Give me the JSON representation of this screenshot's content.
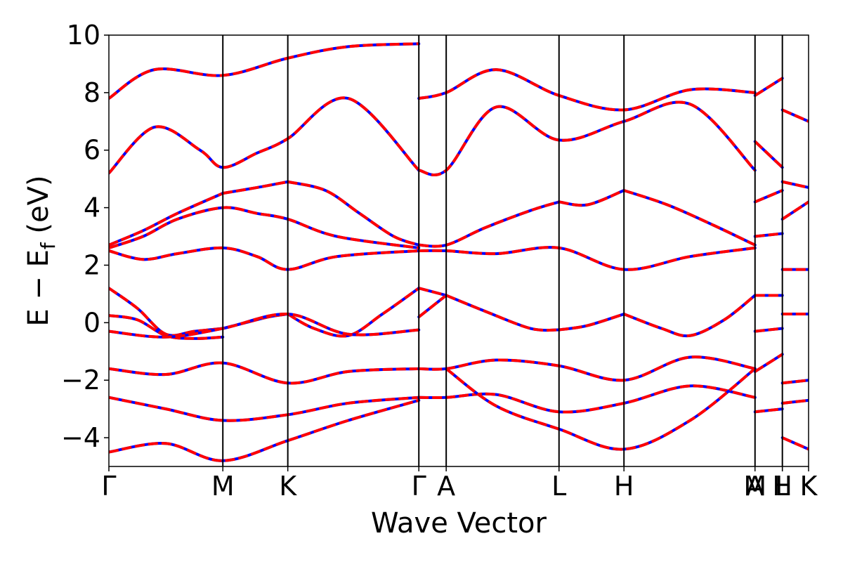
{
  "chart_data": {
    "type": "line",
    "title": "",
    "xlabel": "Wave Vector",
    "ylabel": {
      "main": "E − E",
      "subscript": "f",
      "unit": " (eV)"
    },
    "ylim": [
      -5,
      10
    ],
    "yticks": [
      -4,
      -2,
      0,
      2,
      4,
      6,
      8,
      10
    ],
    "ytick_labels": [
      "−4",
      "−2",
      "0",
      "2",
      "4",
      "6",
      "8",
      "10"
    ],
    "xlim": [
      0,
      6.14
    ],
    "high_symmetry_points": [
      {
        "label": "Γ",
        "x": 0.0
      },
      {
        "label": "M",
        "x": 1.0
      },
      {
        "label": "K",
        "x": 1.57
      },
      {
        "label": "Γ",
        "x": 2.72
      },
      {
        "label": "A",
        "x": 2.96
      },
      {
        "label": "L",
        "x": 3.95
      },
      {
        "label": "H",
        "x": 4.52
      },
      {
        "label": "A",
        "x": 5.67
      },
      {
        "label": "M",
        "x": 5.67
      },
      {
        "label": "L",
        "x": 5.91
      },
      {
        "label": "H",
        "x": 5.91
      },
      {
        "label": "K",
        "x": 6.14
      }
    ],
    "grid": false,
    "colors": {
      "series_a": "#0000ff",
      "series_b": "#ff0000"
    },
    "series": [
      {
        "style": "solid blue, overlaid by dashed red",
        "x": [
          0,
          0.25,
          0.5,
          0.75,
          1.0
        ],
        "y": [
          1.2,
          0.5,
          -0.4,
          -0.3,
          -0.2
        ]
      },
      {
        "style": "solid blue, overlaid by dashed red",
        "x": [
          1.0,
          1.2,
          1.4,
          1.57
        ],
        "y": [
          -0.2,
          0.0,
          0.2,
          0.3
        ]
      },
      {
        "style": "solid blue, overlaid by dashed red",
        "x": [
          1.57,
          1.8,
          2.1,
          2.4,
          2.72
        ],
        "y": [
          0.3,
          -0.2,
          -0.45,
          0.3,
          1.2
        ]
      },
      {
        "style": "solid blue, overlaid by dashed red",
        "x": [
          0,
          0.25,
          0.5,
          0.75,
          1.0
        ],
        "y": [
          0.25,
          0.1,
          -0.45,
          -0.55,
          -0.5
        ]
      },
      {
        "style": "solid blue, overlaid by dashed red",
        "x": [
          0,
          0.5,
          1.0,
          1.57,
          2.1,
          2.72
        ],
        "y": [
          -0.3,
          -0.5,
          -0.2,
          0.3,
          -0.4,
          -0.25
        ]
      },
      {
        "style": "solid blue, overlaid by dashed red",
        "x": [
          2.72,
          2.96
        ],
        "y": [
          1.2,
          0.95
        ]
      },
      {
        "style": "solid blue, overlaid by dashed red",
        "x": [
          2.72,
          2.96
        ],
        "y": [
          0.2,
          0.95
        ]
      },
      {
        "style": "solid blue, overlaid by dashed red",
        "x": [
          2.96,
          3.3,
          3.7,
          3.95
        ],
        "y": [
          0.95,
          0.4,
          -0.2,
          -0.25
        ]
      },
      {
        "style": "solid blue, overlaid by dashed red",
        "x": [
          3.95,
          4.2,
          4.52
        ],
        "y": [
          -0.25,
          -0.1,
          0.3
        ]
      },
      {
        "style": "solid blue, overlaid by dashed red",
        "x": [
          4.52,
          4.85,
          5.1,
          5.4,
          5.67
        ],
        "y": [
          0.3,
          -0.2,
          -0.45,
          0.1,
          0.95
        ]
      },
      {
        "style": "solid blue, overlaid by dashed red",
        "x": [
          0,
          0.3,
          0.6,
          1.0
        ],
        "y": [
          2.7,
          3.2,
          3.8,
          4.5
        ]
      },
      {
        "style": "solid blue, overlaid by dashed red",
        "x": [
          1.0,
          1.3,
          1.57
        ],
        "y": [
          4.5,
          4.7,
          4.9
        ]
      },
      {
        "style": "solid blue, overlaid by dashed red",
        "x": [
          1.57,
          1.9,
          2.2,
          2.5,
          2.72
        ],
        "y": [
          4.9,
          4.6,
          3.8,
          3.0,
          2.7
        ]
      },
      {
        "style": "solid blue, overlaid by dashed red",
        "x": [
          0,
          0.3,
          0.6,
          1.0,
          1.3,
          1.57,
          2.0,
          2.72
        ],
        "y": [
          2.6,
          3.0,
          3.6,
          4.0,
          3.8,
          3.6,
          3.0,
          2.6
        ]
      },
      {
        "style": "solid blue, overlaid by dashed red",
        "x": [
          0,
          0.3,
          0.6,
          1.0,
          1.3,
          1.57,
          2.0,
          2.72
        ],
        "y": [
          2.5,
          2.2,
          2.4,
          2.6,
          2.3,
          1.85,
          2.3,
          2.5
        ]
      },
      {
        "style": "solid blue, overlaid by dashed red",
        "x": [
          2.72,
          2.96,
          3.3,
          3.7,
          3.95
        ],
        "y": [
          2.7,
          2.7,
          3.3,
          3.9,
          4.2
        ]
      },
      {
        "style": "solid blue, overlaid by dashed red",
        "x": [
          3.95,
          4.2,
          4.52
        ],
        "y": [
          4.2,
          4.1,
          4.6
        ]
      },
      {
        "style": "solid blue, overlaid by dashed red",
        "x": [
          4.52,
          4.9,
          5.3,
          5.67
        ],
        "y": [
          4.6,
          4.1,
          3.4,
          2.7
        ]
      },
      {
        "style": "solid blue, overlaid by dashed red",
        "x": [
          2.72,
          2.96,
          3.4,
          3.95,
          4.52,
          5.1,
          5.67
        ],
        "y": [
          2.5,
          2.5,
          2.4,
          2.6,
          1.85,
          2.3,
          2.6
        ]
      },
      {
        "style": "solid blue, overlaid by dashed red",
        "x": [
          0,
          0.4,
          0.8,
          1.0,
          1.3,
          1.57,
          2.1,
          2.72
        ],
        "y": [
          5.2,
          6.8,
          6.0,
          5.4,
          5.9,
          6.4,
          7.8,
          5.3
        ]
      },
      {
        "style": "solid blue, overlaid by dashed red",
        "x": [
          2.72,
          2.96,
          3.4,
          3.95,
          4.52,
          5.1,
          5.67
        ],
        "y": [
          5.3,
          5.3,
          7.5,
          6.35,
          7.0,
          7.6,
          5.3
        ]
      },
      {
        "style": "solid blue, overlaid by dashed red",
        "x": [
          0,
          0.4,
          1.0,
          1.57,
          2.1,
          2.72
        ],
        "y": [
          7.8,
          8.8,
          8.6,
          9.2,
          9.6,
          9.7
        ]
      },
      {
        "style": "solid blue, overlaid by dashed red",
        "x": [
          2.72,
          2.96,
          3.4,
          3.95,
          4.52,
          5.1,
          5.67
        ],
        "y": [
          7.8,
          8.0,
          8.8,
          7.9,
          7.4,
          8.1,
          8.0
        ]
      },
      {
        "style": "solid blue, overlaid by dashed red",
        "x": [
          0,
          0.5,
          1.0,
          1.57,
          2.1,
          2.72
        ],
        "y": [
          -1.6,
          -1.8,
          -1.4,
          -2.1,
          -1.7,
          -1.6
        ]
      },
      {
        "style": "solid blue, overlaid by dashed red",
        "x": [
          0,
          0.5,
          1.0,
          1.57,
          2.1,
          2.72
        ],
        "y": [
          -2.6,
          -3.0,
          -3.4,
          -3.2,
          -2.8,
          -2.6
        ]
      },
      {
        "style": "solid blue, overlaid by dashed red",
        "x": [
          0,
          0.5,
          1.0,
          1.57,
          2.1,
          2.72
        ],
        "y": [
          -4.5,
          -4.2,
          -4.8,
          -4.1,
          -3.4,
          -2.7
        ]
      },
      {
        "style": "solid blue, overlaid by dashed red",
        "x": [
          2.72,
          2.96,
          3.4,
          3.95,
          4.52,
          5.1,
          5.67
        ],
        "y": [
          -1.6,
          -1.6,
          -1.3,
          -1.5,
          -2.0,
          -1.2,
          -1.6
        ]
      },
      {
        "style": "solid blue, overlaid by dashed red",
        "x": [
          2.72,
          2.96,
          3.4,
          3.95,
          4.52,
          5.1,
          5.67
        ],
        "y": [
          -2.6,
          -2.6,
          -2.5,
          -3.1,
          -2.8,
          -2.2,
          -2.6
        ]
      },
      {
        "style": "solid blue, overlaid by dashed red",
        "x": [
          2.96,
          3.4,
          3.95,
          4.52,
          5.1,
          5.67
        ],
        "y": [
          -1.6,
          -2.9,
          -3.7,
          -4.4,
          -3.4,
          -1.6
        ]
      },
      {
        "style": "solid blue, overlaid by dashed red",
        "x": [
          5.67,
          5.91
        ],
        "y": [
          -0.3,
          -0.2
        ]
      },
      {
        "style": "solid blue, overlaid by dashed red",
        "x": [
          5.67,
          5.91
        ],
        "y": [
          0.95,
          0.95
        ]
      },
      {
        "style": "solid blue, overlaid by dashed red",
        "x": [
          5.67,
          5.91
        ],
        "y": [
          7.9,
          8.5
        ]
      },
      {
        "style": "solid blue, overlaid by dashed red",
        "x": [
          5.67,
          5.91
        ],
        "y": [
          6.3,
          5.4
        ]
      },
      {
        "style": "solid blue, overlaid by dashed red",
        "x": [
          5.67,
          5.91
        ],
        "y": [
          4.2,
          4.6
        ]
      },
      {
        "style": "solid blue, overlaid by dashed red",
        "x": [
          5.67,
          5.91
        ],
        "y": [
          3.0,
          3.1
        ]
      },
      {
        "style": "solid blue, overlaid by dashed red",
        "x": [
          5.67,
          5.91
        ],
        "y": [
          -1.7,
          -1.1
        ]
      },
      {
        "style": "solid blue, overlaid by dashed red",
        "x": [
          5.67,
          5.91
        ],
        "y": [
          -3.1,
          -3.0
        ]
      },
      {
        "style": "solid blue, overlaid by dashed red",
        "x": [
          5.91,
          6.14
        ],
        "y": [
          1.85,
          1.85
        ]
      },
      {
        "style": "solid blue, overlaid by dashed red",
        "x": [
          5.91,
          6.14
        ],
        "y": [
          0.3,
          0.3
        ]
      },
      {
        "style": "solid blue, overlaid by dashed red",
        "x": [
          5.91,
          6.14
        ],
        "y": [
          -2.1,
          -2.0
        ]
      },
      {
        "style": "solid blue, overlaid by dashed red",
        "x": [
          5.91,
          6.14
        ],
        "y": [
          4.9,
          4.7
        ]
      },
      {
        "style": "solid blue, overlaid by dashed red",
        "x": [
          5.91,
          6.14
        ],
        "y": [
          3.6,
          4.2
        ]
      },
      {
        "style": "solid blue, overlaid by dashed red",
        "x": [
          5.91,
          6.14
        ],
        "y": [
          7.4,
          7.0
        ]
      },
      {
        "style": "solid blue, overlaid by dashed red",
        "x": [
          5.91,
          6.14
        ],
        "y": [
          -4.0,
          -4.4
        ]
      },
      {
        "style": "solid blue, overlaid by dashed red",
        "x": [
          5.91,
          6.14
        ],
        "y": [
          -2.8,
          -2.7
        ]
      }
    ]
  }
}
